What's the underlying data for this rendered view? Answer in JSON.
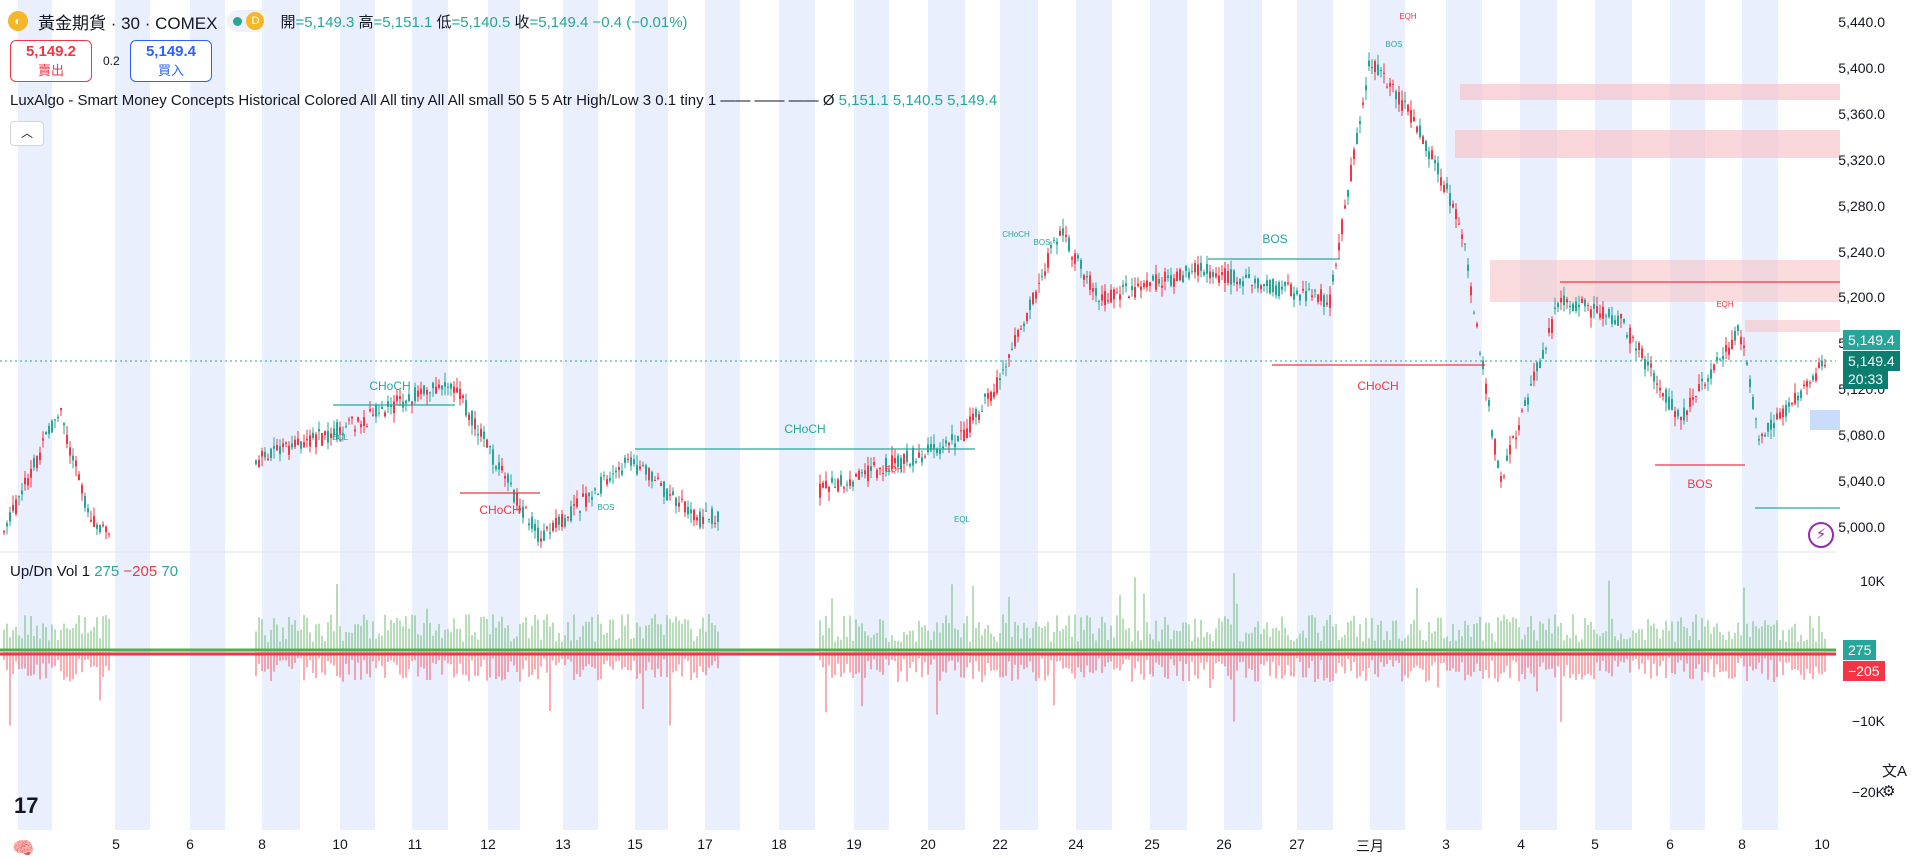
{
  "header": {
    "symbol": "黃金期貨 · 30 · COMEX",
    "interval_badge": "D",
    "open_label": "開",
    "open": "=5,149.3",
    "high_label": "高",
    "high": "=5,151.1",
    "low_label": "低",
    "low": "=5,140.5",
    "close_label": "收",
    "close": "=5,149.4",
    "change": "−0.4 (−0.01%)"
  },
  "trade": {
    "sell_price": "5,149.2",
    "sell_label": "賣出",
    "spread": "0.2",
    "buy_price": "5,149.4",
    "buy_label": "買入"
  },
  "indicator": {
    "name": "LuxAlgo - Smart Money Concepts Historical Colored All All tiny All All small 50 5 5 Atr High/Low 3 0.1 tiny 1 —— —— ——  Ø",
    "v1": "5,151.1",
    "v2": "5,140.5",
    "v3": "5,149.4",
    "collapse_icon": "chevron-up"
  },
  "volume_indicator": {
    "name": "Up/Dn Vol 1",
    "up": "275",
    "down": "−205",
    "delta": "70"
  },
  "price_axis": [
    "5,440.0",
    "5,400.0",
    "5,360.0",
    "5,320.0",
    "5,280.0",
    "5,240.0",
    "5,200.0",
    "5,160.0",
    "5,120.0",
    "5,080.0",
    "5,040.0",
    "5,000.0"
  ],
  "volume_axis": [
    "10K",
    "−10K",
    "−20K"
  ],
  "price_tags": {
    "last": "5,149.4",
    "last2": "5,149.4",
    "countdown": "20:33",
    "high_marker": "5,149.4"
  },
  "volume_tags": {
    "up": "275",
    "down": "−205"
  },
  "x_axis": [
    "5",
    "6",
    "8",
    "10",
    "11",
    "12",
    "13",
    "15",
    "17",
    "18",
    "19",
    "20",
    "22",
    "24",
    "25",
    "26",
    "27",
    "三月",
    "3",
    "4",
    "5",
    "6",
    "8",
    "10"
  ],
  "chart_labels": [
    {
      "text": "CHoCH",
      "c": "g",
      "i": 0
    },
    {
      "text": "CHoCH",
      "c": "r",
      "i": 1
    },
    {
      "text": "CHoCH",
      "c": "g",
      "i": 2
    },
    {
      "text": "BOS",
      "c": "g",
      "i": 3
    },
    {
      "text": "CHoCH",
      "c": "r",
      "i": 4
    },
    {
      "text": "BOS",
      "c": "r",
      "i": 5
    },
    {
      "text": "EQH",
      "c": "r",
      "i": 6
    },
    {
      "text": "BOS",
      "c": "g",
      "i": 7
    },
    {
      "text": "EQH",
      "c": "r",
      "i": 8
    },
    {
      "text": "EQL",
      "c": "g",
      "i": 9
    },
    {
      "text": "BOS",
      "c": "g",
      "i": 10
    },
    {
      "text": "CHoCH",
      "c": "g",
      "i": 11
    },
    {
      "text": "BOS",
      "c": "g",
      "i": 12
    },
    {
      "text": "EQH",
      "c": "r",
      "i": 13
    },
    {
      "text": "EQL",
      "c": "g",
      "i": 14
    }
  ],
  "colors": {
    "bull": "#26a69a",
    "bear": "#f23645",
    "vol_up": "#4caf50",
    "vol_down": "#f23645",
    "session": "#e9effd",
    "ob_bear": "#f7c5ca",
    "ob_bull": "#bbd3f7"
  }
}
